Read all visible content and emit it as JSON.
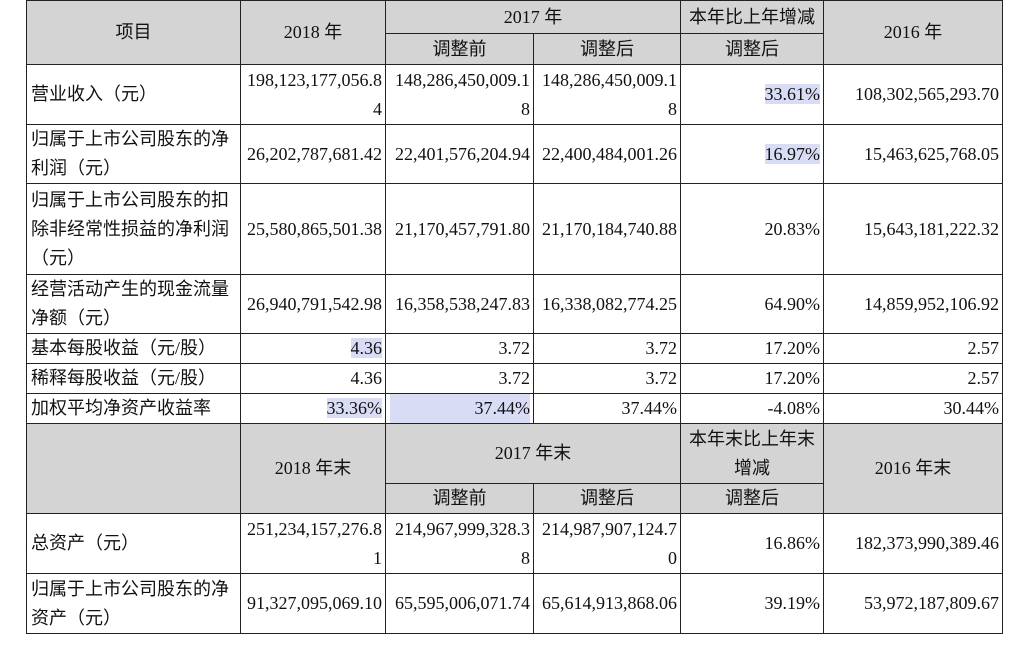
{
  "header1": {
    "item": "项目",
    "y2018": "2018 年",
    "y2017": "2017 年",
    "change": "本年比上年增减",
    "y2016": "2016 年",
    "before_adj": "调整前",
    "after_adj": "调整后",
    "change_after": "调整后"
  },
  "rows1": [
    {
      "label": "营业收入（元）",
      "v2018": "198,123,177,056.84",
      "v2017a": "148,286,450,009.18",
      "v2017b": "148,286,450,009.18",
      "chg": "33.61%",
      "v2016": "108,302,565,293.70"
    },
    {
      "label": "归属于上市公司股东的净利润（元）",
      "v2018": "26,202,787,681.42",
      "v2017a": "22,401,576,204.94",
      "v2017b": "22,400,484,001.26",
      "chg": "16.97%",
      "v2016": "15,463,625,768.05"
    },
    {
      "label": "归属于上市公司股东的扣除非经常性损益的净利润（元）",
      "v2018": "25,580,865,501.38",
      "v2017a": "21,170,457,791.80",
      "v2017b": "21,170,184,740.88",
      "chg": "20.83%",
      "v2016": "15,643,181,222.32"
    },
    {
      "label": "经营活动产生的现金流量净额（元）",
      "v2018": "26,940,791,542.98",
      "v2017a": "16,358,538,247.83",
      "v2017b": "16,338,082,774.25",
      "chg": "64.90%",
      "v2016": "14,859,952,106.92"
    },
    {
      "label": "基本每股收益（元/股）",
      "v2018": "4.36",
      "v2017a": "3.72",
      "v2017b": "3.72",
      "chg": "17.20%",
      "v2016": "2.57"
    },
    {
      "label": "稀释每股收益（元/股）",
      "v2018": "4.36",
      "v2017a": "3.72",
      "v2017b": "3.72",
      "chg": "17.20%",
      "v2016": "2.57"
    },
    {
      "label": "加权平均净资产收益率",
      "v2018": "33.36%",
      "v2017a": "37.44%",
      "v2017b": "37.44%",
      "chg": "-4.08%",
      "v2016": "30.44%"
    }
  ],
  "header2": {
    "y2018": "2018 年末",
    "y2017": "2017 年末",
    "change": "本年末比上年末增减",
    "y2016": "2016 年末",
    "before_adj": "调整前",
    "after_adj": "调整后",
    "change_after": "调整后"
  },
  "rows2": [
    {
      "label": "总资产（元）",
      "v2018": "251,234,157,276.81",
      "v2017a": "214,967,999,328.38",
      "v2017b": "214,987,907,124.70",
      "chg": "16.86%",
      "v2016": "182,373,990,389.46"
    },
    {
      "label": "归属于上市公司股东的净资产（元）",
      "v2018": "91,327,095,069.10",
      "v2017a": "65,595,006,071.74",
      "v2017b": "65,614,913,868.06",
      "chg": "39.19%",
      "v2016": "53,972,187,809.67"
    }
  ]
}
